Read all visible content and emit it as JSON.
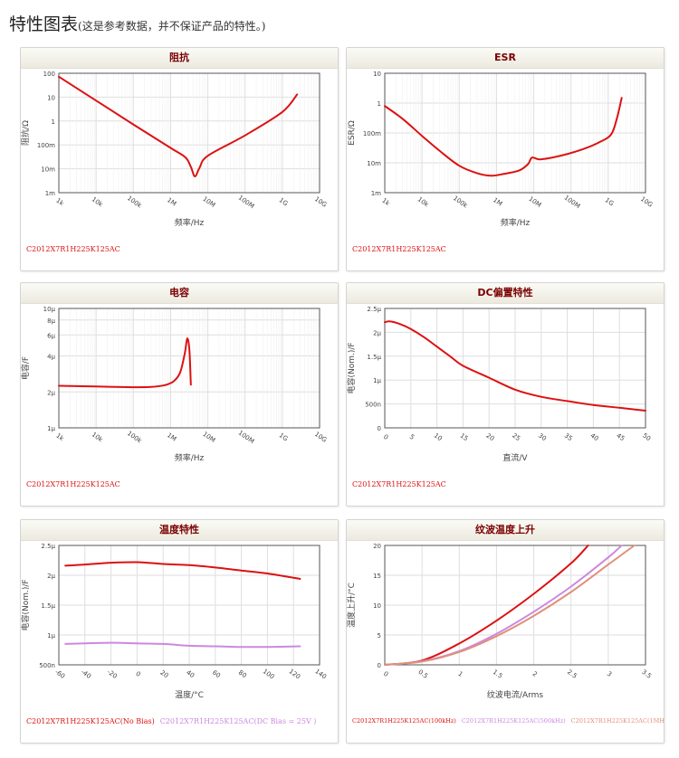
{
  "page": {
    "title": "特性图表",
    "subtitle": "(这是参考数据，并不保证产品的特性。)"
  },
  "chart_data": [
    {
      "id": "impedance",
      "type": "line",
      "title": "阻抗",
      "xlabel": "频率/Hz",
      "ylabel": "阻抗/Ω",
      "xscale": "log",
      "yscale": "log",
      "xlim": [
        1000,
        10000000000
      ],
      "ylim": [
        0.001,
        100
      ],
      "xticks": [
        [
          1000,
          "1k"
        ],
        [
          10000,
          "10k"
        ],
        [
          100000,
          "100k"
        ],
        [
          1000000,
          "1M"
        ],
        [
          10000000,
          "10M"
        ],
        [
          100000000,
          "100M"
        ],
        [
          1000000000,
          "1G"
        ],
        [
          10000000000,
          "10G"
        ]
      ],
      "yticks": [
        [
          100,
          "100"
        ],
        [
          10,
          "10"
        ],
        [
          1,
          "1"
        ],
        [
          0.1,
          "100m"
        ],
        [
          0.01,
          "10m"
        ],
        [
          0.001,
          "1m"
        ]
      ],
      "grid": true,
      "series": [
        {
          "name": "C2012X7R1H225K125AC",
          "color": "#dd1111",
          "x": [
            1000,
            10000,
            100000,
            1000000,
            2500000,
            3500000,
            4500000,
            6000000,
            10000000,
            100000000,
            1000000000,
            2500000000
          ],
          "y": [
            72,
            7.2,
            0.72,
            0.075,
            0.03,
            0.012,
            0.0048,
            0.011,
            0.035,
            0.25,
            2.4,
            13
          ]
        }
      ]
    },
    {
      "id": "esr",
      "type": "line",
      "title": "ESR",
      "xlabel": "频率/Hz",
      "ylabel": "ESR/Ω",
      "xscale": "log",
      "yscale": "log",
      "xlim": [
        1000,
        10000000000
      ],
      "ylim": [
        0.001,
        10
      ],
      "xticks": [
        [
          1000,
          "1k"
        ],
        [
          10000,
          "10k"
        ],
        [
          100000,
          "100k"
        ],
        [
          1000000,
          "1M"
        ],
        [
          10000000,
          "10M"
        ],
        [
          100000000,
          "100M"
        ],
        [
          1000000000,
          "1G"
        ],
        [
          10000000000,
          "10G"
        ]
      ],
      "yticks": [
        [
          10,
          "10"
        ],
        [
          1,
          "1"
        ],
        [
          0.1,
          "100m"
        ],
        [
          0.01,
          "10m"
        ],
        [
          0.001,
          "1m"
        ]
      ],
      "grid": true,
      "series": [
        {
          "name": "C2012X7R1H225K125AC",
          "color": "#dd1111",
          "x": [
            1000,
            3000,
            10000,
            30000,
            100000,
            300000,
            700000,
            1500000,
            4000000,
            7000000,
            9000000,
            15000000,
            50000000,
            200000000,
            600000000,
            1200000000,
            1700000000,
            2300000000
          ],
          "y": [
            0.8,
            0.3,
            0.08,
            0.025,
            0.008,
            0.0045,
            0.0037,
            0.0042,
            0.0055,
            0.009,
            0.015,
            0.013,
            0.017,
            0.028,
            0.05,
            0.09,
            0.3,
            1.5
          ]
        }
      ]
    },
    {
      "id": "capacitance",
      "type": "line",
      "title": "电容",
      "xlabel": "频率/Hz",
      "ylabel": "电容/F",
      "xscale": "log",
      "yscale": "log",
      "xlim": [
        1000,
        10000000000
      ],
      "ylim": [
        1e-06,
        1e-05
      ],
      "xticks": [
        [
          1000,
          "1k"
        ],
        [
          10000,
          "10k"
        ],
        [
          100000,
          "100k"
        ],
        [
          1000000,
          "1M"
        ],
        [
          10000000,
          "10M"
        ],
        [
          100000000,
          "100M"
        ],
        [
          1000000000,
          "1G"
        ],
        [
          10000000000,
          "10G"
        ]
      ],
      "yticks": [
        [
          1e-05,
          "10μ"
        ],
        [
          8e-06,
          "8μ"
        ],
        [
          6e-06,
          "6μ"
        ],
        [
          4e-06,
          "4μ"
        ],
        [
          2e-06,
          "2μ"
        ],
        [
          1e-06,
          "1μ"
        ]
      ],
      "grid": true,
      "series": [
        {
          "name": "C2012X7R1H225K125AC",
          "color": "#dd1111",
          "x": [
            1000,
            10000,
            100000,
            300000,
            700000,
            1200000,
            1800000,
            2400000,
            2800000,
            3200000,
            3500000
          ],
          "y": [
            2.25e-06,
            2.22e-06,
            2.19e-06,
            2.2e-06,
            2.28e-06,
            2.45e-06,
            2.9e-06,
            4.2e-06,
            5.6e-06,
            4.5e-06,
            2.3e-06
          ]
        }
      ]
    },
    {
      "id": "dc_bias",
      "type": "line",
      "title": "DC偏置特性",
      "xlabel": "直流/V",
      "ylabel": "电容(Nom.)/F",
      "xscale": "linear",
      "yscale": "linear",
      "xlim": [
        0,
        50
      ],
      "ylim": [
        0,
        2.5e-06
      ],
      "xticks": [
        [
          0,
          "0"
        ],
        [
          5,
          "5"
        ],
        [
          10,
          "10"
        ],
        [
          15,
          "15"
        ],
        [
          20,
          "20"
        ],
        [
          25,
          "25"
        ],
        [
          30,
          "30"
        ],
        [
          35,
          "35"
        ],
        [
          40,
          "40"
        ],
        [
          45,
          "45"
        ],
        [
          50,
          "50"
        ]
      ],
      "yticks": [
        [
          2.5e-06,
          "2.5μ"
        ],
        [
          2e-06,
          "2μ"
        ],
        [
          1.5e-06,
          "1.5μ"
        ],
        [
          1e-06,
          "1μ"
        ],
        [
          5e-07,
          "500n"
        ],
        [
          0,
          "0"
        ]
      ],
      "grid": true,
      "series": [
        {
          "name": "C2012X7R1H225K125AC",
          "color": "#dd1111",
          "x": [
            0,
            1,
            3,
            5,
            7.5,
            10,
            12.5,
            15,
            20,
            25,
            30,
            35,
            40,
            45,
            50
          ],
          "y": [
            2.21e-06,
            2.23e-06,
            2.17e-06,
            2.07e-06,
            1.9e-06,
            1.7e-06,
            1.5e-06,
            1.3e-06,
            1.05e-06,
            8e-07,
            6.5e-07,
            5.6e-07,
            4.8e-07,
            4.2e-07,
            3.6e-07
          ]
        }
      ]
    },
    {
      "id": "temperature",
      "type": "line",
      "title": "温度特性",
      "xlabel": "温度/°C",
      "ylabel": "电容(Nom.)/F",
      "xscale": "linear",
      "yscale": "linear",
      "xlim": [
        -60,
        140
      ],
      "ylim": [
        5e-07,
        2.5e-06
      ],
      "xticks": [
        [
          -60,
          "-60"
        ],
        [
          -40,
          "-40"
        ],
        [
          -20,
          "-20"
        ],
        [
          0,
          "0"
        ],
        [
          20,
          "20"
        ],
        [
          40,
          "40"
        ],
        [
          60,
          "60"
        ],
        [
          80,
          "80"
        ],
        [
          100,
          "100"
        ],
        [
          120,
          "120"
        ],
        [
          140,
          "140"
        ]
      ],
      "yticks": [
        [
          2.5e-06,
          "2.5μ"
        ],
        [
          2e-06,
          "2μ"
        ],
        [
          1.5e-06,
          "1.5μ"
        ],
        [
          1e-06,
          "1μ"
        ],
        [
          5e-07,
          "500n"
        ]
      ],
      "grid": true,
      "series": [
        {
          "name": "C2012X7R1H225K125AC(No Bias)",
          "color": "#dd1111",
          "x": [
            -55,
            -40,
            -20,
            0,
            20,
            40,
            60,
            80,
            100,
            125
          ],
          "y": [
            2.16e-06,
            2.18e-06,
            2.21e-06,
            2.22e-06,
            2.19e-06,
            2.17e-06,
            2.13e-06,
            2.08e-06,
            2.03e-06,
            1.94e-06
          ]
        },
        {
          "name": "C2012X7R1H225K125AC(DC Bias = 25V )",
          "color": "#cc88e0",
          "x": [
            -55,
            -40,
            -20,
            0,
            20,
            40,
            60,
            80,
            100,
            125
          ],
          "y": [
            8.5e-07,
            8.6e-07,
            8.7e-07,
            8.6e-07,
            8.5e-07,
            8.2e-07,
            8.1e-07,
            8e-07,
            8e-07,
            8.1e-07
          ]
        }
      ]
    },
    {
      "id": "ripple",
      "type": "line",
      "title": "纹波温度上升",
      "xlabel": "纹波电流/Arms",
      "ylabel": "温度上升/°C",
      "xscale": "linear",
      "yscale": "linear",
      "xlim": [
        0,
        3.5
      ],
      "ylim": [
        0,
        20
      ],
      "xticks": [
        [
          0,
          "0"
        ],
        [
          0.5,
          "0.5"
        ],
        [
          1,
          "1"
        ],
        [
          1.5,
          "1.5"
        ],
        [
          2,
          "2"
        ],
        [
          2.5,
          "2.5"
        ],
        [
          3,
          "3"
        ],
        [
          3.5,
          "3.5"
        ]
      ],
      "yticks": [
        [
          20,
          "20"
        ],
        [
          15,
          "15"
        ],
        [
          10,
          "10"
        ],
        [
          5,
          "5"
        ],
        [
          0,
          "0"
        ]
      ],
      "grid": true,
      "series": [
        {
          "name": "C2012X7R1H225K125AC(100kHz)",
          "color": "#dd1111",
          "x": [
            0,
            0.5,
            1,
            1.5,
            2,
            2.5,
            2.73
          ],
          "y": [
            0,
            0.73,
            3.58,
            7.4,
            11.9,
            17.0,
            20
          ]
        },
        {
          "name": "C2012X7R1H225K125AC(500kHz)",
          "color": "#cc88e0",
          "x": [
            0,
            0.5,
            1,
            1.5,
            2,
            2.5,
            3,
            3.18
          ],
          "y": [
            0,
            0.6,
            2.3,
            5.2,
            8.9,
            13.1,
            18.0,
            20
          ]
        },
        {
          "name": "C2012X7R1H225K125AC(1MHz)",
          "color": "#e0907a",
          "x": [
            0,
            0.5,
            1,
            1.5,
            2,
            2.5,
            3,
            3.35
          ],
          "y": [
            0,
            0.55,
            2.15,
            4.8,
            8.2,
            12.2,
            16.8,
            20
          ]
        }
      ]
    }
  ]
}
